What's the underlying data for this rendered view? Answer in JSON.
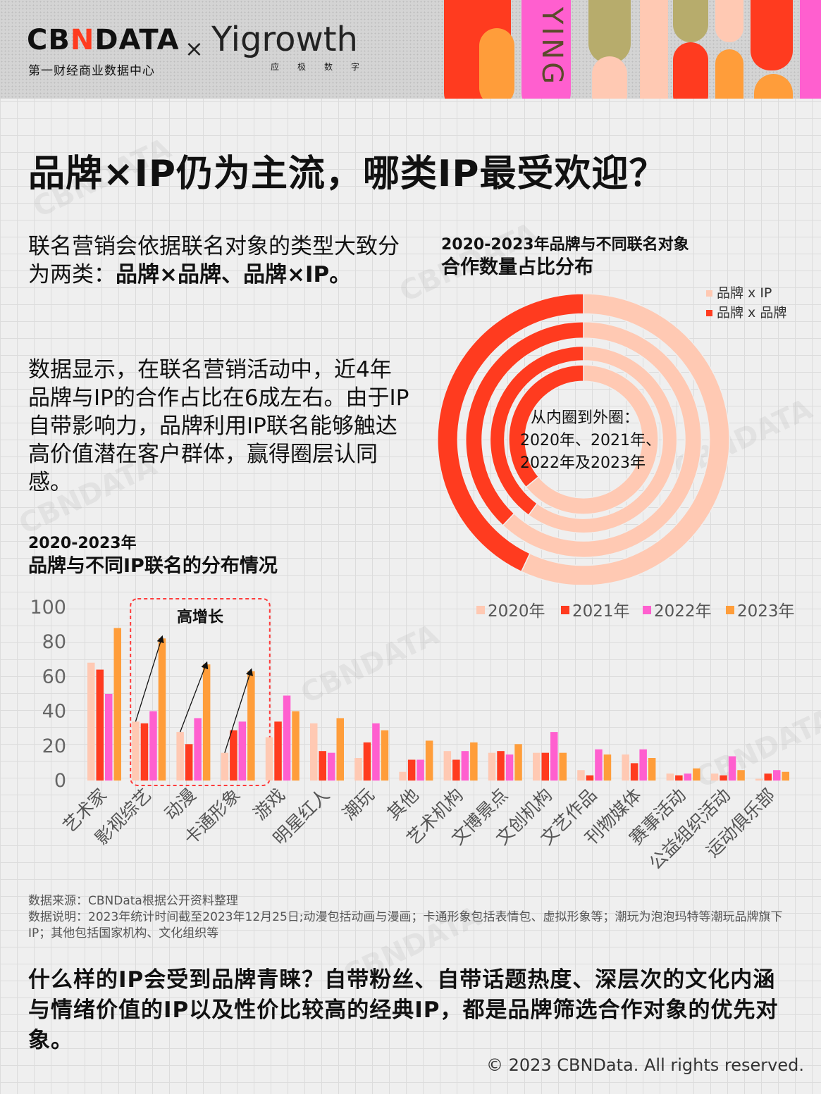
{
  "header": {
    "logo_cbn_prefix": "CB",
    "logo_cbn_n": "N",
    "logo_cbn_suffix": "DATA",
    "logo_cbn_sub": "第一财经商业数据中心",
    "logo_x": "×",
    "logo_yig": "Yigrowth",
    "logo_yig_sub": "应极数字",
    "deco_text": "YING",
    "colors": {
      "red": "#ff3b1f",
      "pink": "#ff5fcf",
      "orange": "#ff9d3a",
      "olive": "#b7ac6c",
      "peach": "#ffc9b3"
    }
  },
  "title": "品牌×IP仍为主流，哪类IP最受欢迎？",
  "intro": {
    "p1_text": "联名营销会依据联名对象的类型大致分为两类：",
    "p1_bold": "品牌×品牌、品牌×IP。",
    "p2": "数据显示，在联名营销活动中，近4年品牌与IP的合作占比在6成左右。由于IP自带影响力，品牌利用IP联名能够触达高价值潜在客户群体，赢得圈层认同感。"
  },
  "donut": {
    "title_line1": "2020-2023年品牌与不同联名对象",
    "title_line2": "合作数量占比分布",
    "center_line1": "从内圈到外圈：",
    "center_line2": "2020年、2021年、",
    "center_line3": "2022年及2023年"
  },
  "bars": {
    "title_line1": "2020-2023年",
    "title_line2": "品牌与不同IP联名的分布情况",
    "highlight_label": "高增长"
  },
  "chart_data": [
    {
      "type": "pie",
      "subtype": "nested-donut",
      "rings": [
        "2020年",
        "2021年",
        "2022年",
        "2023年"
      ],
      "series": [
        {
          "name": "品牌 x IP",
          "color": "#ffc9b3",
          "values": [
            64,
            60,
            62,
            57
          ]
        },
        {
          "name": "品牌 x 品牌",
          "color": "#ff3b1f",
          "values": [
            36,
            40,
            38,
            43
          ]
        }
      ],
      "legend_position": "top-right"
    },
    {
      "type": "bar",
      "categories": [
        "艺术家",
        "影视综艺",
        "动漫",
        "卡通形象",
        "游戏",
        "明星红人",
        "潮玩",
        "其他",
        "艺术机构",
        "文博景点",
        "文创机构",
        "文艺作品",
        "刊物媒体",
        "赛事活动",
        "公益组织活动",
        "运动俱乐部"
      ],
      "series": [
        {
          "name": "2020年",
          "color": "#ffc9b3",
          "values": [
            68,
            34,
            28,
            16,
            25,
            33,
            13,
            5,
            17,
            16,
            16,
            6,
            15,
            4,
            4,
            1
          ]
        },
        {
          "name": "2021年",
          "color": "#ff3b1f",
          "values": [
            64,
            33,
            21,
            29,
            34,
            17,
            22,
            12,
            12,
            17,
            16,
            3,
            10,
            3,
            3,
            4
          ]
        },
        {
          "name": "2022年",
          "color": "#ff5fcf",
          "values": [
            50,
            40,
            36,
            34,
            49,
            16,
            33,
            12,
            17,
            15,
            28,
            18,
            18,
            4,
            14,
            6
          ]
        },
        {
          "name": "2023年",
          "color": "#ff9d3a",
          "values": [
            88,
            82,
            67,
            63,
            40,
            36,
            29,
            23,
            22,
            21,
            16,
            15,
            13,
            7,
            6,
            5
          ]
        }
      ],
      "y_ticks": [
        0,
        20,
        40,
        60,
        80,
        100
      ],
      "ylim": [
        0,
        100
      ],
      "legend_position": "top-right",
      "highlight_categories": [
        "影视综艺",
        "动漫",
        "卡通形象"
      ]
    }
  ],
  "notes": {
    "source": "数据来源：CBNData根据公开资料整理",
    "explain": "数据说明：2023年统计时间截至2023年12月25日;动漫包括动画与漫画；卡通形象包括表情包、虚拟形象等；潮玩为泡泡玛特等潮玩品牌旗下IP；其他包括国家机构、文化组织等"
  },
  "conclusion": "什么样的IP会受到品牌青睐？自带粉丝、自带话题热度、深层次的文化内涵与情绪价值的IP以及性价比较高的经典IP，都是品牌筛选合作对象的优先对象。",
  "copyright": "© 2023 CBNData. All rights reserved.",
  "watermark": "CBNDATA"
}
